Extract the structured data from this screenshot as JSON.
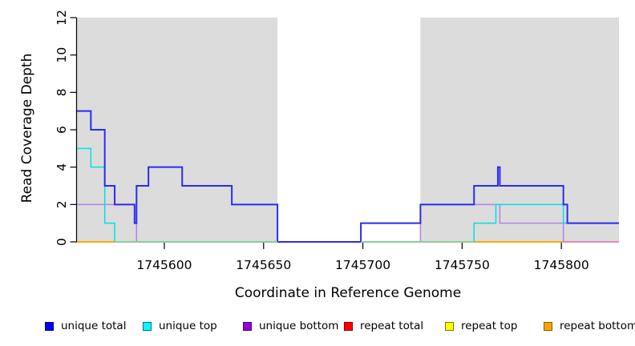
{
  "figure": {
    "xlabel": "Coordinate in Reference Genome",
    "ylabel": "Read Coverage Depth"
  },
  "chart_data": {
    "type": "line",
    "subtype": "step",
    "title": "",
    "xlabel": "Coordinate in Reference Genome",
    "ylabel": "Read Coverage Depth",
    "xlim": [
      1745556,
      1745829
    ],
    "ylim": [
      0,
      12
    ],
    "x_ticks": [
      1745600,
      1745650,
      1745700,
      1745750,
      1745800
    ],
    "y_ticks": [
      0,
      2,
      4,
      6,
      8,
      10,
      12
    ],
    "grid": "off",
    "background_shading": {
      "color": "#dcdcdc",
      "regions": [
        [
          1745556,
          1745657
        ],
        [
          1745729,
          1745829
        ]
      ]
    },
    "series": [
      {
        "name": "repeat total",
        "color": "#ff0000",
        "width": 1.6,
        "steps": [
          [
            1745556,
            0
          ]
        ]
      },
      {
        "name": "repeat top",
        "color": "#ffff00",
        "width": 1.6,
        "steps": [
          [
            1745556,
            0
          ]
        ]
      },
      {
        "name": "repeat bottom",
        "color": "#ffa500",
        "width": 1.8,
        "steps": [
          [
            1745556,
            0
          ]
        ]
      },
      {
        "name": "unique bottom",
        "color": "#b283e3",
        "width": 1.5,
        "steps": [
          [
            1745556,
            2
          ],
          [
            1745585,
            1
          ],
          [
            1745586,
            0
          ],
          [
            1745729,
            2
          ],
          [
            1745769,
            1
          ],
          [
            1745801,
            0
          ]
        ]
      },
      {
        "name": "unique top",
        "color": "#00e0e0",
        "width": 1.5,
        "steps": [
          [
            1745556,
            5
          ],
          [
            1745563,
            4
          ],
          [
            1745570,
            1
          ],
          [
            1745575,
            0
          ],
          [
            1745756,
            1
          ],
          [
            1745767,
            2
          ],
          [
            1745801,
            1
          ]
        ]
      },
      {
        "name": "unique total",
        "color": "#2b2bef",
        "width": 2,
        "steps": [
          [
            1745556,
            7
          ],
          [
            1745563,
            6
          ],
          [
            1745570,
            3
          ],
          [
            1745575,
            2
          ],
          [
            1745585,
            1
          ],
          [
            1745586,
            3
          ],
          [
            1745592,
            4
          ],
          [
            1745609,
            3
          ],
          [
            1745634,
            2
          ],
          [
            1745657,
            0
          ],
          [
            1745699,
            1
          ],
          [
            1745729,
            2
          ],
          [
            1745756,
            3
          ],
          [
            1745768,
            4
          ],
          [
            1745769,
            3
          ],
          [
            1745801,
            2
          ],
          [
            1745803,
            1
          ]
        ]
      }
    ],
    "zero_line_overlaps": [
      {
        "color": "#8fd28f",
        "from": 1745575,
        "to": 1745657
      },
      {
        "color": "#8fd28f",
        "from": 1745699,
        "to": 1745756
      },
      {
        "color": "#de8ac2",
        "from": 1745801,
        "to": 1745829
      }
    ],
    "legend": {
      "position": "bottom",
      "items": [
        {
          "label": "unique total",
          "fill": "#0000ee",
          "border": "#00008b"
        },
        {
          "label": "unique top",
          "fill": "#00ffff",
          "border": "#00688b"
        },
        {
          "label": "unique bottom",
          "fill": "#9400d3",
          "border": "#4b0082"
        },
        {
          "label": "repeat total",
          "fill": "#ff0000",
          "border": "#8b0000"
        },
        {
          "label": "repeat top",
          "fill": "#ffff00",
          "border": "#7a7a00"
        },
        {
          "label": "repeat bottom",
          "fill": "#ffa500",
          "border": "#8b5a00"
        }
      ]
    }
  }
}
